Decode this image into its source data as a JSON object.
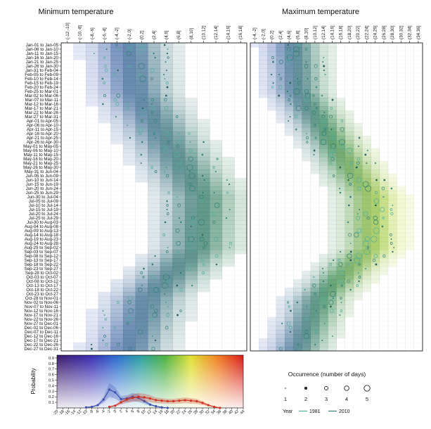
{
  "chart_data": [
    {
      "type": "heatmap",
      "title": "Minimum temperature",
      "x_categories": [
        "(-12,-10]",
        "(-10,-8]",
        "(-8,-6]",
        "(-6,-4]",
        "(-4,-2]",
        "(-2,0]",
        "(0,2]",
        "(2,4]",
        "(4,6]",
        "(6,8]",
        "(8,10]",
        "(10,12]",
        "(12,14]",
        "(14,16]",
        "(16,18]"
      ],
      "y_categories": [
        "Jan-01 to Jan-05",
        "Jan-06 to Jan-10",
        "Jan-11 to Jan-15",
        "Jan-16 to Jan-20",
        "Jan-21 to Jan-25",
        "Jan-26 to Jan-30",
        "Jan-31 to Feb-04",
        "Feb-05 to Feb-09",
        "Feb-10 to Feb-14",
        "Feb-15 to Feb-19",
        "Feb-20 to Feb-24",
        "Feb-25 to Mar-01",
        "Mar-02 to Mar-06",
        "Mar-07 to Mar-11",
        "Mar-12 to Mar-16",
        "Mar-17 to Mar-21",
        "Mar-22 to Mar-26",
        "Mar-27 to Mar-31",
        "Apr-01 to Apr-05",
        "Apr-06 to Apr-10",
        "Apr-11 to Apr-15",
        "Apr-16 to Apr-20",
        "Apr-21 to Apr-25",
        "Apr-26 to Apr-30",
        "May-01 to May-05",
        "May-06 to May-10",
        "May-11 to May-15",
        "May-16 to May-20",
        "May-21 to May-25",
        "May-26 to May-30",
        "May-31 to Jun-04",
        "Jun-05 to Jun-09",
        "Jun-10 to Jun-14",
        "Jun-15 to Jun-19",
        "Jun-20 to Jun-24",
        "Jun-25 to Jun-29",
        "Jun-30 to Jul-04",
        "Jul-05 to Jul-09",
        "Jul-10 to Jul-14",
        "Jul-15 to Jul-19",
        "Jul-20 to Jul-24",
        "Jul-25 to Jul-29",
        "Jul-30 to Aug-03",
        "Aug-04 to Aug-08",
        "Aug-09 to Aug-13",
        "Aug-14 to Aug-18",
        "Aug-19 to Aug-23",
        "Aug-24 to Aug-28",
        "Aug-29 to Sep-02",
        "Sep-03 to Sep-07",
        "Sep-08 to Sep-12",
        "Sep-13 to Sep-17",
        "Sep-18 to Sep-22",
        "Sep-23 to Sep-27",
        "Sep-28 to Oct-02",
        "Oct-03 to Oct-07",
        "Oct-08 to Oct-12",
        "Oct-13 to Oct-17",
        "Oct-18 to Oct-22",
        "Oct-23 to Oct-27",
        "Oct-28 to Nov-01",
        "Nov-02 to Nov-06",
        "Nov-07 to Nov-11",
        "Nov-12 to Nov-16",
        "Nov-17 to Nov-21",
        "Nov-22 to Nov-26",
        "Nov-27 to Dec-01",
        "Dec-02 to Dec-06",
        "Dec-07 to Dec-11",
        "Dec-12 to Dec-16",
        "Dec-17 to Dec-21",
        "Dec-22 to Dec-26",
        "Dec-27 to Dec-31"
      ],
      "seasonal_center_bin": {
        "row_index": [
          0,
          11,
          36,
          48,
          60,
          72
        ],
        "bin_index": [
          5,
          5.5,
          10.8,
          10.5,
          6.5,
          5
        ]
      },
      "spread_bins": 2.4
    },
    {
      "type": "heatmap",
      "title": "Maximum temperature",
      "x_categories": [
        "(-4,-2]",
        "(-2,0]",
        "(0,2]",
        "(2,4]",
        "(4,6]",
        "(6,8]",
        "(8,10]",
        "(10,12]",
        "(12,14]",
        "(14,16]",
        "(16,18]",
        "(18,20]",
        "(20,22]",
        "(22,24]",
        "(24,26]",
        "(26,28]",
        "(28,30]",
        "(30,32]",
        "(32,34]",
        "(34,36]"
      ],
      "y_categories_shared_with": "Minimum temperature",
      "seasonal_center_bin": {
        "row_index": [
          0,
          11,
          36,
          48,
          60,
          72
        ],
        "bin_index": [
          4.5,
          5,
          13.5,
          13.5,
          7.5,
          5
        ]
      },
      "spread_bins": 2.6
    },
    {
      "type": "line",
      "ylabel": "Probability",
      "y_ticks": [
        "0.9",
        "0.8",
        "0.7",
        "0.6",
        "0.5",
        "0.4",
        "0.3",
        "0.2",
        "0.1"
      ],
      "ylim": [
        0,
        0.95
      ],
      "x_tick_labels": [
        "-20",
        "-18",
        "-16",
        "-14",
        "-12",
        "-10",
        "-8",
        "-6",
        "-4",
        "-2",
        "0",
        "2",
        "4",
        "6",
        "8",
        "10",
        "12",
        "14",
        "16",
        "18",
        "20",
        "22",
        "24",
        "26",
        "28",
        "30",
        "32",
        "34",
        "36",
        "38",
        "40",
        "42",
        "44"
      ],
      "series": [
        {
          "name": "Minimum temperature",
          "color": "#3a4fb0",
          "x": [
            -10,
            -8,
            -6,
            -4,
            -2,
            0,
            2,
            4,
            6,
            8,
            10,
            12,
            14,
            16,
            18
          ],
          "y": [
            0.01,
            0.02,
            0.05,
            0.15,
            0.33,
            0.28,
            0.16,
            0.17,
            0.2,
            0.18,
            0.12,
            0.06,
            0.03,
            0.01,
            0.0
          ]
        },
        {
          "name": "Maximum temperature",
          "color": "#d03020",
          "x": [
            -2,
            0,
            2,
            4,
            6,
            8,
            10,
            12,
            14,
            16,
            18,
            20,
            22,
            24,
            26,
            28,
            30,
            32,
            34,
            36
          ],
          "y": [
            0.02,
            0.04,
            0.1,
            0.15,
            0.18,
            0.2,
            0.19,
            0.17,
            0.14,
            0.13,
            0.12,
            0.12,
            0.13,
            0.14,
            0.13,
            0.12,
            0.09,
            0.05,
            0.02,
            0.0
          ]
        }
      ]
    }
  ],
  "legend": {
    "occurrence_title": "Occurrence (number of days)",
    "occurrence_levels": [
      "1",
      "2",
      "3",
      "4",
      "5"
    ],
    "year_label": "Year",
    "years": [
      {
        "label": "1981",
        "color": "#4fae9c"
      },
      {
        "label": "2010",
        "color": "#2f7f74"
      }
    ]
  },
  "colors": {
    "cold": "#4a5cc8",
    "mid": "#3d8a5a",
    "warm": "#c8e040",
    "grid": "#dddddd",
    "circle": "#2d8c6e"
  }
}
